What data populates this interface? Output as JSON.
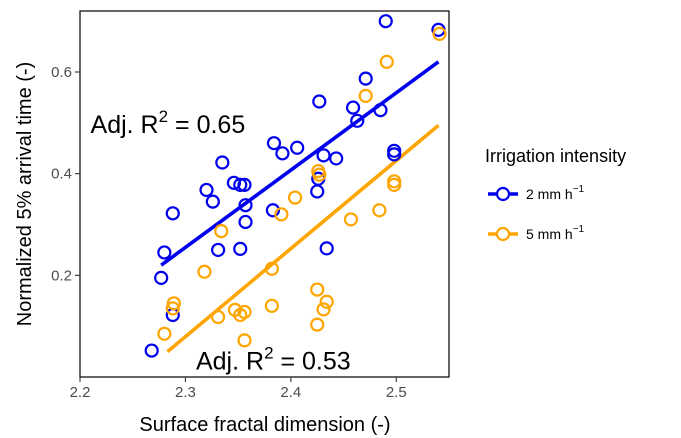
{
  "chart_data": {
    "type": "scatter",
    "xlabel": "Surface fractal dimension (-)",
    "ylabel": "Normalized 5% arrival time (-)",
    "xlim": [
      2.2,
      2.55
    ],
    "ylim": [
      0.0,
      0.72
    ],
    "x_ticks": [
      "2.2",
      "2.3",
      "2.4",
      "2.5"
    ],
    "y_ticks": [
      "0.2",
      "0.4",
      "0.6"
    ],
    "grid": false,
    "legend": {
      "title": "Irrigation intensity",
      "position": "right"
    },
    "annotations": [
      {
        "base": "Adj. R",
        "sup": "2",
        "rest": " = 0.65",
        "x": 2.21,
        "y": 0.48
      },
      {
        "base": "Adj. R",
        "sup": "2",
        "rest": " = 0.53",
        "x": 2.31,
        "y": 0.015
      }
    ],
    "series": [
      {
        "name": "2 mm h",
        "name_sup": "−1",
        "color": "#0000ee",
        "fit": {
          "x": [
            2.277,
            2.54
          ],
          "y": [
            0.22,
            0.62
          ]
        },
        "points": [
          [
            2.268,
            0.052
          ],
          [
            2.277,
            0.195
          ],
          [
            2.28,
            0.245
          ],
          [
            2.288,
            0.122
          ],
          [
            2.288,
            0.322
          ],
          [
            2.32,
            0.368
          ],
          [
            2.326,
            0.345
          ],
          [
            2.331,
            0.25
          ],
          [
            2.335,
            0.422
          ],
          [
            2.346,
            0.382
          ],
          [
            2.352,
            0.252
          ],
          [
            2.352,
            0.378
          ],
          [
            2.356,
            0.378
          ],
          [
            2.357,
            0.338
          ],
          [
            2.357,
            0.305
          ],
          [
            2.383,
            0.328
          ],
          [
            2.384,
            0.46
          ],
          [
            2.392,
            0.44
          ],
          [
            2.406,
            0.451
          ],
          [
            2.425,
            0.365
          ],
          [
            2.426,
            0.39
          ],
          [
            2.427,
            0.542
          ],
          [
            2.431,
            0.436
          ],
          [
            2.434,
            0.253
          ],
          [
            2.443,
            0.43
          ],
          [
            2.459,
            0.53
          ],
          [
            2.463,
            0.504
          ],
          [
            2.471,
            0.587
          ],
          [
            2.485,
            0.525
          ],
          [
            2.49,
            0.7
          ],
          [
            2.498,
            0.438
          ],
          [
            2.498,
            0.445
          ],
          [
            2.54,
            0.683
          ]
        ]
      },
      {
        "name": "5 mm h",
        "name_sup": "−1",
        "color": "#ffa500",
        "fit": {
          "x": [
            2.283,
            2.54
          ],
          "y": [
            0.05,
            0.495
          ]
        },
        "points": [
          [
            2.28,
            0.085
          ],
          [
            2.288,
            0.135
          ],
          [
            2.289,
            0.145
          ],
          [
            2.318,
            0.207
          ],
          [
            2.331,
            0.118
          ],
          [
            2.334,
            0.287
          ],
          [
            2.347,
            0.132
          ],
          [
            2.352,
            0.122
          ],
          [
            2.356,
            0.128
          ],
          [
            2.356,
            0.072
          ],
          [
            2.382,
            0.213
          ],
          [
            2.382,
            0.14
          ],
          [
            2.391,
            0.32
          ],
          [
            2.404,
            0.353
          ],
          [
            2.425,
            0.172
          ],
          [
            2.425,
            0.103
          ],
          [
            2.426,
            0.405
          ],
          [
            2.427,
            0.398
          ],
          [
            2.431,
            0.133
          ],
          [
            2.434,
            0.148
          ],
          [
            2.457,
            0.31
          ],
          [
            2.471,
            0.553
          ],
          [
            2.484,
            0.328
          ],
          [
            2.491,
            0.62
          ],
          [
            2.498,
            0.385
          ],
          [
            2.498,
            0.378
          ],
          [
            2.541,
            0.675
          ]
        ]
      }
    ]
  }
}
